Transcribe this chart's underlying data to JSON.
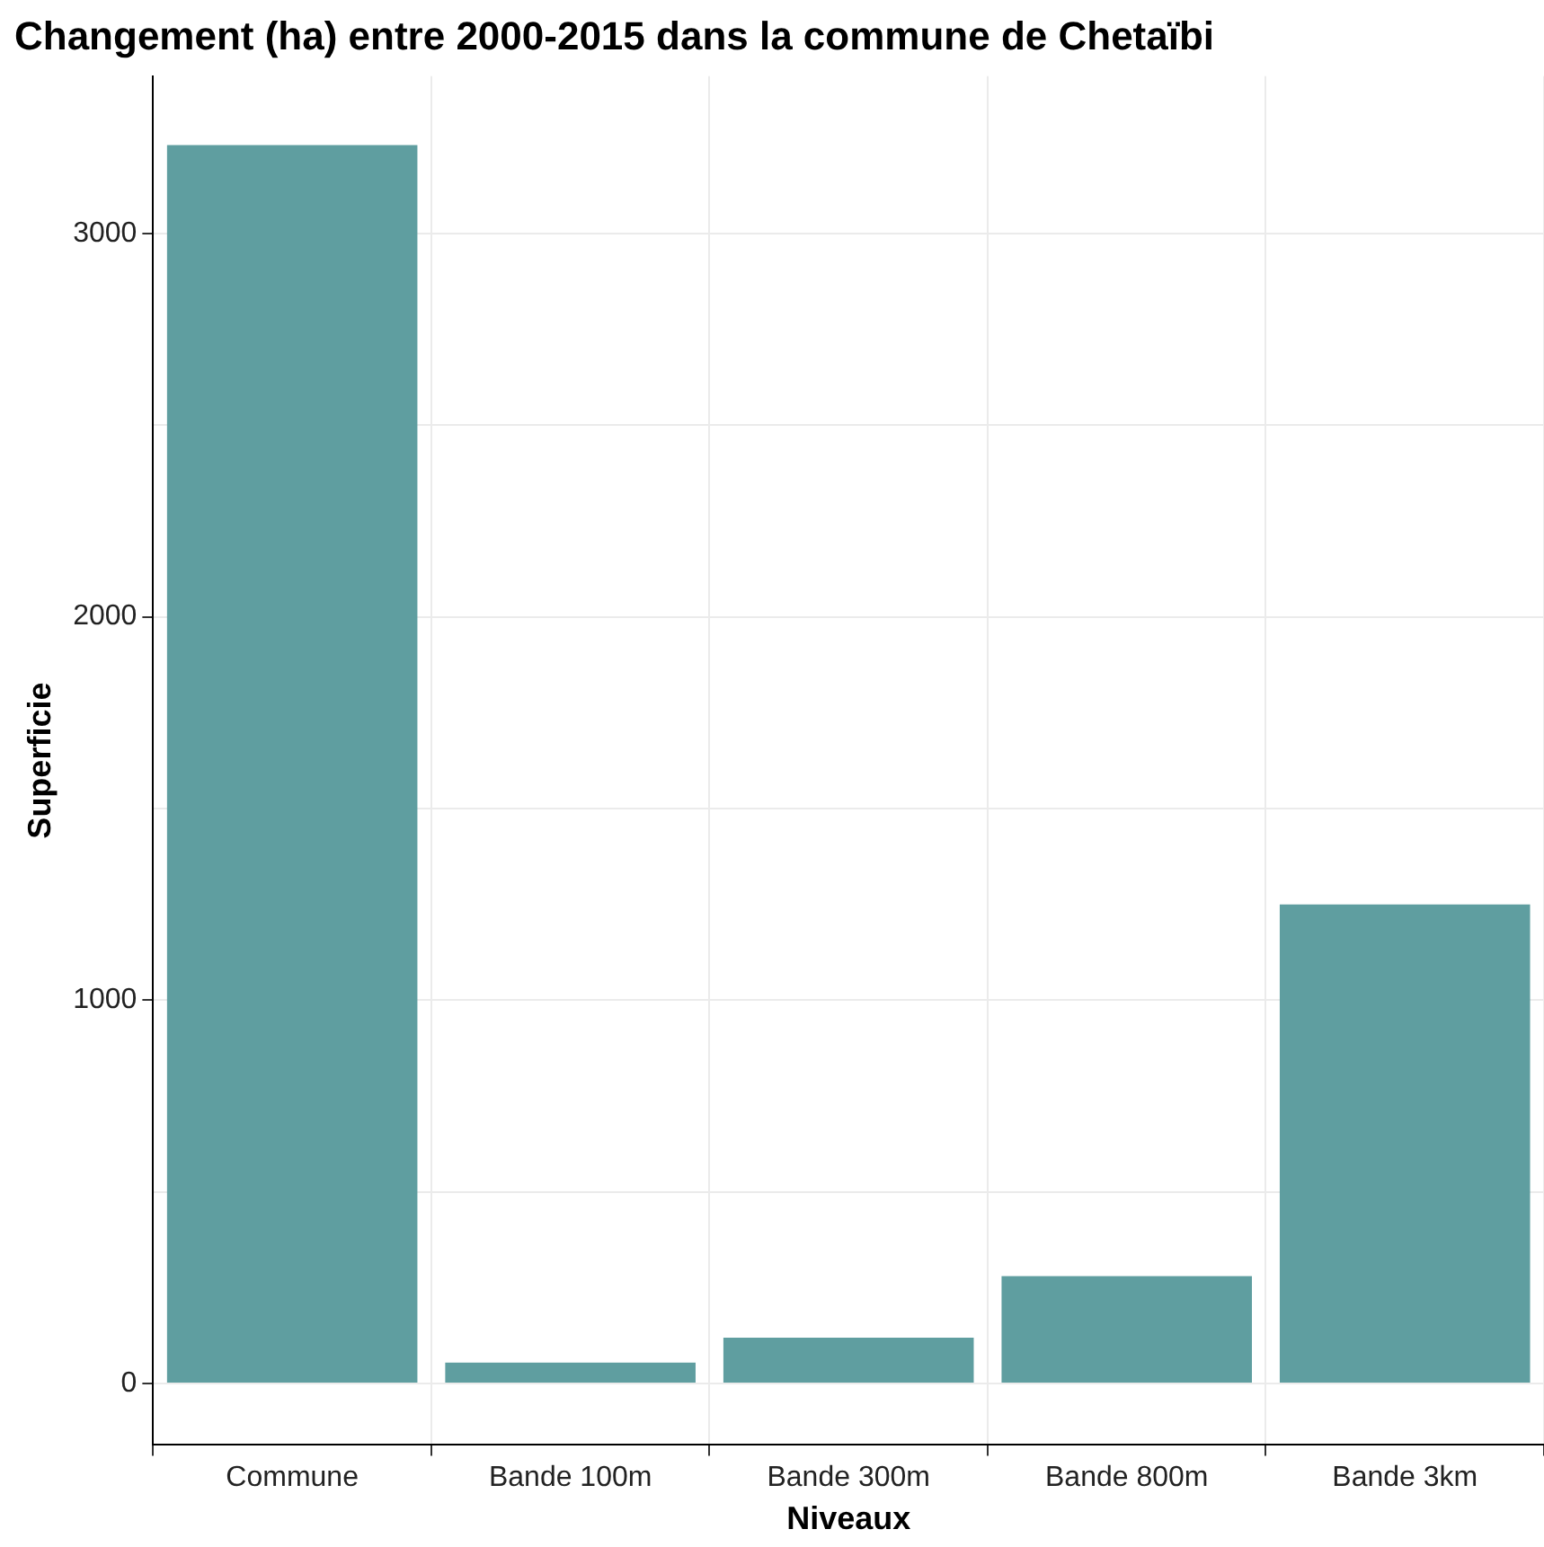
{
  "chart_data": {
    "type": "bar",
    "title": "Changement (ha) entre 2000-2015 dans la commune de Chetaïbi",
    "xlabel": "Niveaux",
    "ylabel": "Superficie",
    "categories": [
      "Commune",
      "Bande 100m",
      "Bande 300m",
      "Bande 800m",
      "Bande 3km"
    ],
    "values": [
      3230,
      55,
      120,
      280,
      1250
    ],
    "color": "#5f9ea0",
    "ylim": [
      -160,
      3410
    ],
    "yticks": [
      0,
      {
        "value": 500,
        "label": null
      },
      1000,
      {
        "value": 1500,
        "label": null
      },
      2000,
      {
        "value": 2500,
        "label": null
      },
      3000
    ],
    "grid": true
  }
}
